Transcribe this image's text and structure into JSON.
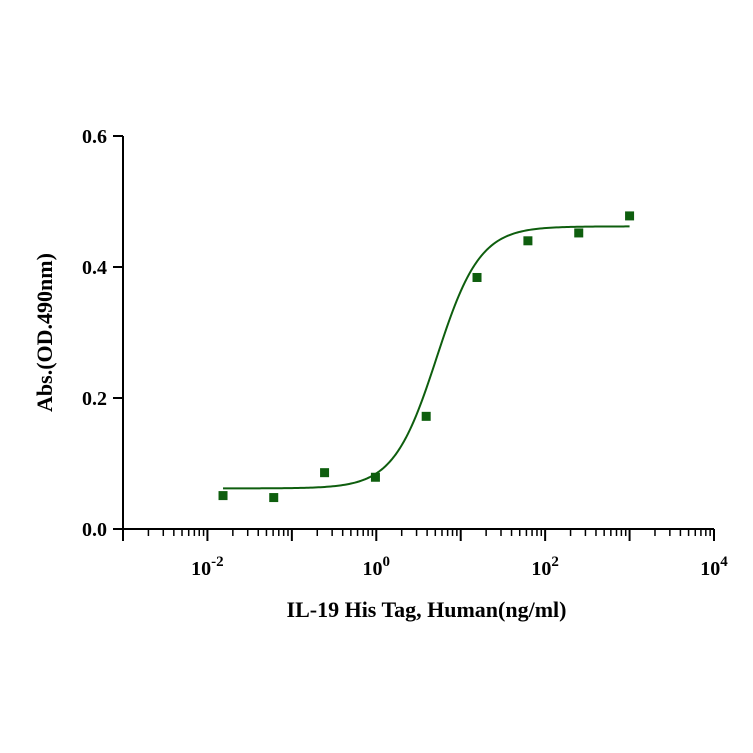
{
  "chart_data": {
    "type": "scatter",
    "xlabel": "IL-19 His Tag, Human(ng/ml)",
    "ylabel": "Abs.(OD.490nm)",
    "x_scale": "log",
    "xlim": [
      0.001,
      10000
    ],
    "ylim": [
      0,
      0.6
    ],
    "grid": false,
    "x_ticks": [
      {
        "base": "10",
        "exp": "-2",
        "value": 0.01
      },
      {
        "base": "10",
        "exp": "0",
        "value": 1
      },
      {
        "base": "10",
        "exp": "2",
        "value": 100
      },
      {
        "base": "10",
        "exp": "4",
        "value": 10000
      }
    ],
    "y_ticks": [
      {
        "label": "0.0",
        "value": 0
      },
      {
        "label": "0.2",
        "value": 0.2
      },
      {
        "label": "0.4",
        "value": 0.4
      },
      {
        "label": "0.6",
        "value": 0.6
      }
    ],
    "series": [
      {
        "color": "#0e5e0e",
        "marker": "square",
        "x": [
          0.0153,
          0.061,
          0.244,
          0.977,
          3.9,
          15.6,
          62.5,
          250,
          1000
        ],
        "y": [
          0.051,
          0.048,
          0.086,
          0.079,
          0.172,
          0.384,
          0.44,
          0.452,
          0.478
        ]
      }
    ],
    "fit_curve": {
      "model": "4PL",
      "bottom": 0.062,
      "top": 0.462,
      "ec50": 5.2,
      "hill": 1.7,
      "x_range": [
        0.0153,
        1000
      ],
      "color": "#0e5e0e"
    }
  }
}
